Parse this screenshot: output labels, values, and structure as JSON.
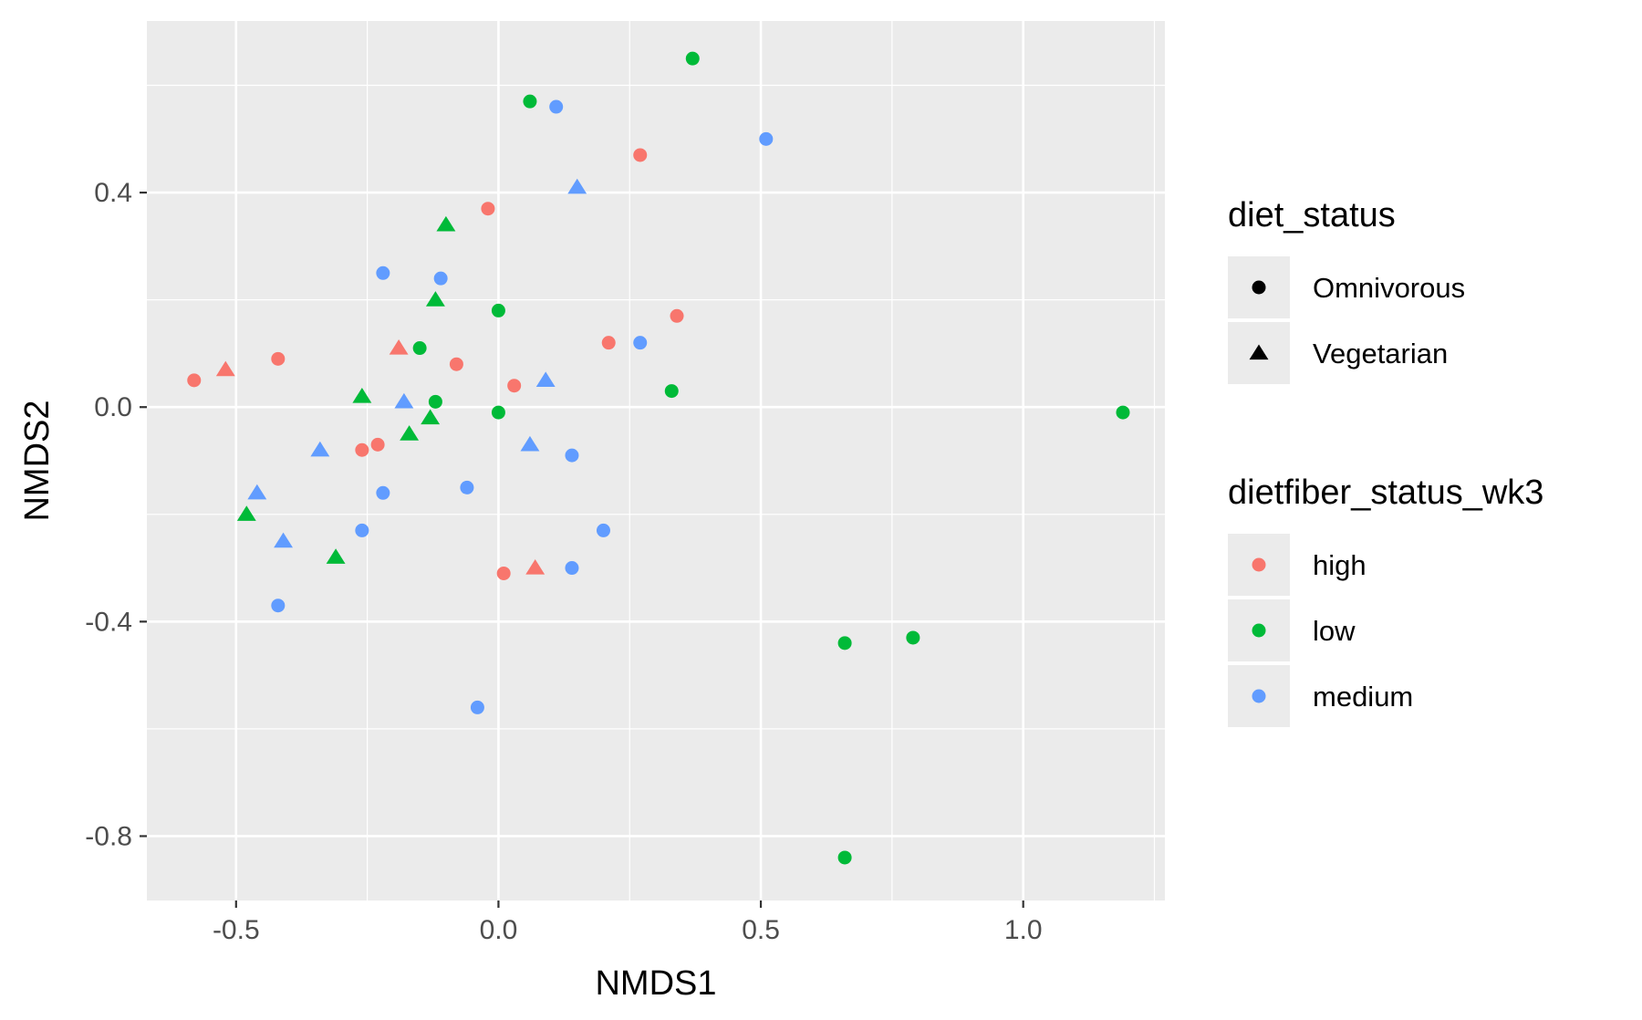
{
  "chart_data": {
    "type": "scatter",
    "title": "",
    "xlabel": "NMDS1",
    "ylabel": "NMDS2",
    "xlim": [
      -0.67,
      1.27
    ],
    "ylim": [
      -0.92,
      0.72
    ],
    "xticks": [
      -0.5,
      0.0,
      0.5,
      1.0
    ],
    "xtick_labels": [
      "-0.5",
      "0.0",
      "0.5",
      "1.0"
    ],
    "yticks": [
      -0.8,
      -0.4,
      0.0,
      0.4
    ],
    "ytick_labels": [
      "-0.8",
      "-0.4",
      "0.0",
      "0.4"
    ],
    "grid": true,
    "legend_position": "right",
    "legends": [
      {
        "title": "diet_status",
        "entries": [
          {
            "label": "Omnivorous",
            "shape": "circle"
          },
          {
            "label": "Vegetarian",
            "shape": "triangle"
          }
        ]
      },
      {
        "title": "dietfiber_status_wk3",
        "entries": [
          {
            "label": "high",
            "color": "#F8766D"
          },
          {
            "label": "low",
            "color": "#00BA38"
          },
          {
            "label": "medium",
            "color": "#619CFF"
          }
        ]
      }
    ],
    "colors": {
      "high": "#F8766D",
      "low": "#00BA38",
      "medium": "#619CFF"
    },
    "shapes": {
      "Omnivorous": "circle",
      "Vegetarian": "triangle"
    },
    "points": [
      {
        "x": 0.37,
        "y": 0.65,
        "fiber": "low",
        "diet": "Omnivorous"
      },
      {
        "x": 0.06,
        "y": 0.57,
        "fiber": "low",
        "diet": "Omnivorous"
      },
      {
        "x": 0.11,
        "y": 0.56,
        "fiber": "medium",
        "diet": "Omnivorous"
      },
      {
        "x": 0.51,
        "y": 0.5,
        "fiber": "medium",
        "diet": "Omnivorous"
      },
      {
        "x": 0.27,
        "y": 0.47,
        "fiber": "high",
        "diet": "Omnivorous"
      },
      {
        "x": 0.15,
        "y": 0.41,
        "fiber": "medium",
        "diet": "Vegetarian"
      },
      {
        "x": -0.02,
        "y": 0.37,
        "fiber": "high",
        "diet": "Omnivorous"
      },
      {
        "x": -0.1,
        "y": 0.34,
        "fiber": "low",
        "diet": "Vegetarian"
      },
      {
        "x": -0.22,
        "y": 0.25,
        "fiber": "medium",
        "diet": "Omnivorous"
      },
      {
        "x": -0.11,
        "y": 0.24,
        "fiber": "medium",
        "diet": "Omnivorous"
      },
      {
        "x": -0.12,
        "y": 0.2,
        "fiber": "low",
        "diet": "Vegetarian"
      },
      {
        "x": 0.0,
        "y": 0.18,
        "fiber": "low",
        "diet": "Omnivorous"
      },
      {
        "x": 0.34,
        "y": 0.17,
        "fiber": "high",
        "diet": "Omnivorous"
      },
      {
        "x": 0.21,
        "y": 0.12,
        "fiber": "high",
        "diet": "Omnivorous"
      },
      {
        "x": 0.27,
        "y": 0.12,
        "fiber": "medium",
        "diet": "Omnivorous"
      },
      {
        "x": -0.19,
        "y": 0.11,
        "fiber": "high",
        "diet": "Vegetarian"
      },
      {
        "x": -0.15,
        "y": 0.11,
        "fiber": "low",
        "diet": "Omnivorous"
      },
      {
        "x": -0.42,
        "y": 0.09,
        "fiber": "high",
        "diet": "Omnivorous"
      },
      {
        "x": -0.08,
        "y": 0.08,
        "fiber": "high",
        "diet": "Omnivorous"
      },
      {
        "x": -0.52,
        "y": 0.07,
        "fiber": "high",
        "diet": "Vegetarian"
      },
      {
        "x": -0.58,
        "y": 0.05,
        "fiber": "high",
        "diet": "Omnivorous"
      },
      {
        "x": 0.09,
        "y": 0.05,
        "fiber": "medium",
        "diet": "Vegetarian"
      },
      {
        "x": 0.03,
        "y": 0.04,
        "fiber": "high",
        "diet": "Omnivorous"
      },
      {
        "x": 0.33,
        "y": 0.03,
        "fiber": "low",
        "diet": "Omnivorous"
      },
      {
        "x": -0.26,
        "y": 0.02,
        "fiber": "low",
        "diet": "Vegetarian"
      },
      {
        "x": -0.18,
        "y": 0.01,
        "fiber": "medium",
        "diet": "Vegetarian"
      },
      {
        "x": -0.12,
        "y": 0.01,
        "fiber": "low",
        "diet": "Omnivorous"
      },
      {
        "x": 0.0,
        "y": -0.01,
        "fiber": "low",
        "diet": "Omnivorous"
      },
      {
        "x": 1.19,
        "y": -0.01,
        "fiber": "low",
        "diet": "Omnivorous"
      },
      {
        "x": -0.13,
        "y": -0.02,
        "fiber": "low",
        "diet": "Vegetarian"
      },
      {
        "x": -0.17,
        "y": -0.05,
        "fiber": "low",
        "diet": "Vegetarian"
      },
      {
        "x": -0.23,
        "y": -0.07,
        "fiber": "high",
        "diet": "Omnivorous"
      },
      {
        "x": -0.26,
        "y": -0.08,
        "fiber": "high",
        "diet": "Omnivorous"
      },
      {
        "x": 0.06,
        "y": -0.07,
        "fiber": "medium",
        "diet": "Vegetarian"
      },
      {
        "x": -0.34,
        "y": -0.08,
        "fiber": "medium",
        "diet": "Vegetarian"
      },
      {
        "x": 0.14,
        "y": -0.09,
        "fiber": "medium",
        "diet": "Omnivorous"
      },
      {
        "x": -0.06,
        "y": -0.15,
        "fiber": "medium",
        "diet": "Omnivorous"
      },
      {
        "x": -0.22,
        "y": -0.16,
        "fiber": "medium",
        "diet": "Omnivorous"
      },
      {
        "x": -0.46,
        "y": -0.16,
        "fiber": "medium",
        "diet": "Vegetarian"
      },
      {
        "x": -0.48,
        "y": -0.2,
        "fiber": "low",
        "diet": "Vegetarian"
      },
      {
        "x": -0.26,
        "y": -0.23,
        "fiber": "medium",
        "diet": "Omnivorous"
      },
      {
        "x": 0.2,
        "y": -0.23,
        "fiber": "medium",
        "diet": "Omnivorous"
      },
      {
        "x": -0.41,
        "y": -0.25,
        "fiber": "medium",
        "diet": "Vegetarian"
      },
      {
        "x": -0.31,
        "y": -0.28,
        "fiber": "low",
        "diet": "Vegetarian"
      },
      {
        "x": 0.01,
        "y": -0.31,
        "fiber": "high",
        "diet": "Omnivorous"
      },
      {
        "x": 0.07,
        "y": -0.3,
        "fiber": "high",
        "diet": "Vegetarian"
      },
      {
        "x": 0.14,
        "y": -0.3,
        "fiber": "medium",
        "diet": "Omnivorous"
      },
      {
        "x": -0.42,
        "y": -0.37,
        "fiber": "medium",
        "diet": "Omnivorous"
      },
      {
        "x": 0.79,
        "y": -0.43,
        "fiber": "low",
        "diet": "Omnivorous"
      },
      {
        "x": 0.66,
        "y": -0.44,
        "fiber": "low",
        "diet": "Omnivorous"
      },
      {
        "x": -0.04,
        "y": -0.56,
        "fiber": "medium",
        "diet": "Omnivorous"
      },
      {
        "x": 0.66,
        "y": -0.84,
        "fiber": "low",
        "diet": "Omnivorous"
      }
    ]
  }
}
